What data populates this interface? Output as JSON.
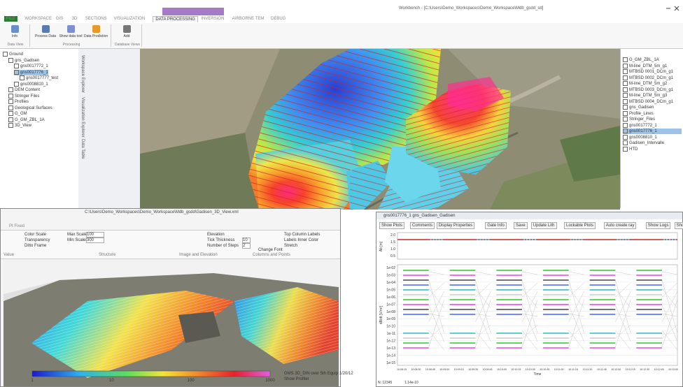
{
  "window": {
    "title": "Workbench - [C:\\Users\\Demo_Workspaces\\Demo_Workspace\\Mdb_gsdd_sd]"
  },
  "ribbon": {
    "tabs": [
      "FILE",
      "WORKSPACE",
      "GIS",
      "3D",
      "SECTIONS",
      "VISUALIZATION",
      "DATA PROCESSING",
      "INVERSION",
      "AIRBORNE TEM",
      "DEBUG"
    ],
    "active_tab": 6,
    "groups": [
      {
        "label": "Data View",
        "buttons": [
          "Info"
        ]
      },
      {
        "label": "Processing",
        "buttons": [
          "Process Data",
          "Show data tool",
          "Data Prediction"
        ]
      },
      {
        "label": "Database Views",
        "buttons": [
          "Add"
        ]
      }
    ]
  },
  "side_tabs": [
    "Workspace Explorer",
    "Visualization Explorer",
    "Data Table"
  ],
  "tree": {
    "items": [
      {
        "label": "Ground",
        "level": 0
      },
      {
        "label": "gns_Gadisen",
        "level": 1
      },
      {
        "label": "gns0017772_1",
        "level": 2
      },
      {
        "label": "gns0017776_1",
        "level": 2
      },
      {
        "label": "gns0017777_test",
        "level": 3
      },
      {
        "label": "gns0008810_1",
        "level": 2
      },
      {
        "label": "DEM Content",
        "level": 1
      },
      {
        "label": "Stringer Files",
        "level": 1
      },
      {
        "label": "Profiles",
        "level": 1
      },
      {
        "label": "Geological Surfaces",
        "level": 1
      },
      {
        "label": "G_GM",
        "level": 1
      },
      {
        "label": "G_GM_ZBL_1A",
        "level": 1
      },
      {
        "label": "3D_View",
        "level": 1
      }
    ],
    "selected": 3
  },
  "layers": {
    "items": [
      "G_GM_ZBL_1A",
      "M-line_DTM_5m_g1",
      "MTBSD 0001_DCm_g1",
      "MTBSD 0002_DCm_g1",
      "M-line_DTM_5m_g2",
      "MTBSD 0003_DCm_g1",
      "M-line_DTM_5m_g3",
      "MTBSD 0004_DCm_g1",
      "gns_Gadisen",
      "Profile_Lines",
      "Stringer_Files",
      "gns0017772_1",
      "gns0017776_1",
      "gns0008810_1",
      "Gadisen_Intervalle",
      "HTD"
    ],
    "selected": 12
  },
  "view3d": {
    "title": "C:\\Users\\Demo_Workspaces\\Demo_Workspace\\Mdb_gsdd\\Gadisen_3D_View.xml",
    "tab": "Pt Fixed",
    "checks": [
      "Color Scale",
      "Transparency",
      "Ditto Frame"
    ],
    "fields": [
      {
        "label": "Max Scaler",
        "value": "100"
      },
      {
        "label": "Min Scaler",
        "value": "300"
      }
    ],
    "elevation": [
      "Elevation",
      "Tick Thickness",
      "Number of Steps"
    ],
    "elevation_values": [
      "10",
      "2"
    ],
    "columns": [
      "Top Column Labels",
      "Labels Inner Color",
      "Stretch"
    ],
    "font_button": "Change Font",
    "groups": [
      "Value",
      "Structure",
      "Image and Elevation",
      "Columns and Points"
    ],
    "colorbar_ticks": [
      "1",
      "10",
      "100",
      "1000"
    ],
    "legend": [
      "GMS 3D_DIN over 5th Equip 1/20/12",
      "Show Profiler"
    ]
  },
  "plot": {
    "title": "gns0017776_1 gns_Gadisen_Gadisen",
    "toolbar": [
      "Show Plots",
      "Comments",
      "Display Properties",
      "Gate Info",
      "Save",
      "Update Lith",
      "Lockable Plots",
      "Auto create ray",
      "Show Logs",
      "Show Context"
    ],
    "top_ylabel": "Alt [m]",
    "top_yticks": [
      "2.0",
      "1.5",
      "1.0",
      "0.5"
    ],
    "ylabel": "dB/dt [V/m²]",
    "yticks": [
      "1e-02",
      "1e-03",
      "1e-04",
      "1e-05",
      "1e-06",
      "1e-07",
      "1e-08",
      "1e-09",
      "1e-10",
      "1e-11",
      "1e-12",
      "1e-13",
      "1e-14",
      "1e-15"
    ],
    "xticks": [
      "10:08:15",
      "10:08:30",
      "10:08:45",
      "10:09:00",
      "10:09:15",
      "10:09:30",
      "10:09:45",
      "10:10:00",
      "10:10:15",
      "10:10:30",
      "10:10:45",
      "10:11:00",
      "10:11:15",
      "10:11:30",
      "10:11:45",
      "10:12:00",
      "10:12:15",
      "10:12:30",
      "10:12:45",
      "10:13:00"
    ],
    "xlabel": "Time",
    "status": [
      "N: 12345",
      "1.14e-10"
    ]
  }
}
